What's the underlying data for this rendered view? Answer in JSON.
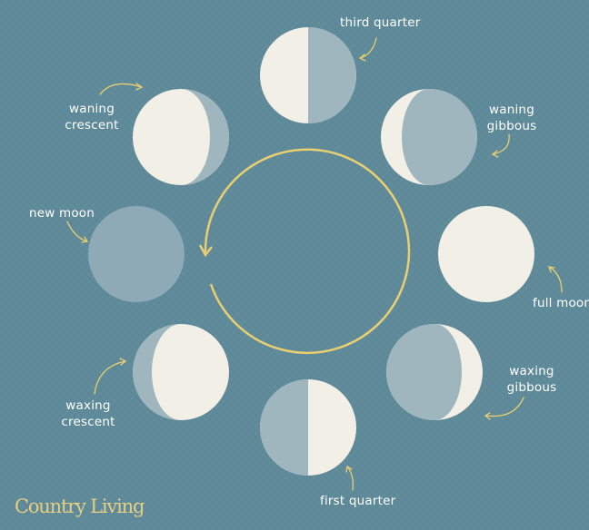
{
  "colors": {
    "background": "#5f8a99",
    "moon_light": "#f1efe6",
    "moon_shadow": "#8eaab6",
    "cycle_arrow": "#e8cf72",
    "pointer_arrow": "#e8cf72",
    "text": "#ffffff",
    "brand": "#e6cf82"
  },
  "phases": [
    {
      "key": "third_quarter",
      "label": "third quarter"
    },
    {
      "key": "waning_gibbous_label1",
      "label": "waning"
    },
    {
      "key": "waning_gibbous_label2",
      "label": "gibbous"
    },
    {
      "key": "full_moon",
      "label": "full moon"
    },
    {
      "key": "waxing_gibbous_label1",
      "label": "waxing"
    },
    {
      "key": "waxing_gibbous_label2",
      "label": "gibbous"
    },
    {
      "key": "first_quarter",
      "label": "first quarter"
    },
    {
      "key": "waxing_crescent_label1",
      "label": "waxing"
    },
    {
      "key": "waxing_crescent_label2",
      "label": "crescent"
    },
    {
      "key": "new_moon",
      "label": "new moon"
    },
    {
      "key": "waning_crescent_label1",
      "label": "waning"
    },
    {
      "key": "waning_crescent_label2",
      "label": "crescent"
    }
  ],
  "brand": {
    "text": "Country Living"
  }
}
